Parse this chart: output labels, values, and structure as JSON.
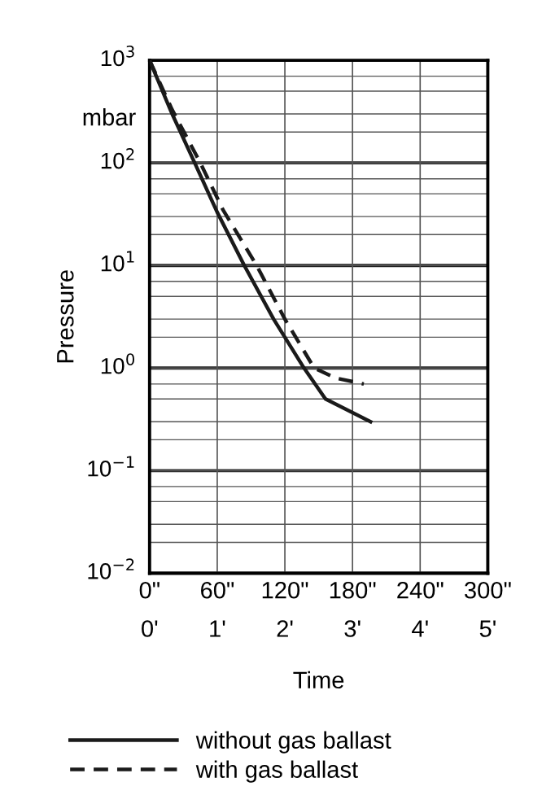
{
  "chart_data": {
    "type": "line",
    "xlabel": "Time",
    "ylabel": "Pressure",
    "annotations": [
      "mbar"
    ],
    "log": "y",
    "xlim": [
      0,
      300
    ],
    "ylim": [
      0.01,
      1000
    ],
    "xticks": [
      {
        "value": 0,
        "label": "0\""
      },
      {
        "value": 60,
        "label": "60\""
      },
      {
        "value": 120,
        "label": "120\""
      },
      {
        "value": 180,
        "label": "180\""
      },
      {
        "value": 240,
        "label": "240\""
      },
      {
        "value": 300,
        "label": "300\""
      }
    ],
    "x2lim": [
      0,
      5
    ],
    "x2ticks": [
      {
        "value": 0,
        "label": "0'"
      },
      {
        "value": 1,
        "label": "1'"
      },
      {
        "value": 2,
        "label": "2'"
      },
      {
        "value": 3,
        "label": "3'"
      },
      {
        "value": 4,
        "label": "4'"
      },
      {
        "value": 5,
        "label": "5'"
      }
    ],
    "yticks": [
      {
        "value": 0.01,
        "label": "10$^{−2}$"
      },
      {
        "value": 0.1,
        "label": "10$^{−1}$"
      },
      {
        "value": 1,
        "label": "10$^{0}$"
      },
      {
        "value": 10,
        "label": "10$^{1}$"
      },
      {
        "value": 100,
        "label": "10$^{2}$"
      },
      {
        "value": 1000,
        "label": "10$^{3}$"
      }
    ],
    "grid": true,
    "legend": "bottom",
    "marker": "none",
    "series": [
      {
        "name": "without gas ballast",
        "color": "#1a1a1a",
        "line_style": "solid",
        "x": [
          0,
          20,
          40,
          60,
          84,
          110,
          137,
          156,
          196
        ],
        "values": [
          1000,
          300,
          100,
          33,
          10,
          3,
          1,
          0.5,
          0.3
        ]
      },
      {
        "name": "with gas ballast",
        "color": "#1a1a1a",
        "line_style": "dashed",
        "x": [
          0,
          20,
          45,
          65,
          95,
          120,
          146,
          165,
          190
        ],
        "values": [
          1000,
          330,
          100,
          35,
          10,
          3,
          1,
          0.8,
          0.7
        ]
      }
    ]
  }
}
